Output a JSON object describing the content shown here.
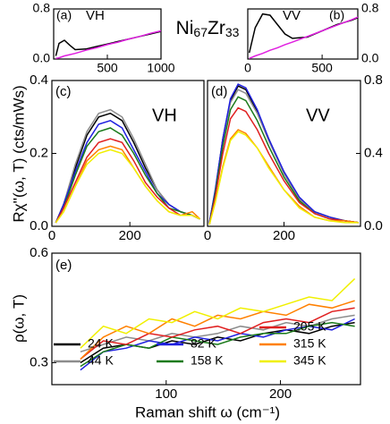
{
  "figure": {
    "title": [
      "Ni",
      "67",
      "Zr",
      "33"
    ],
    "y_label": "Rχ''(ω, T) (cts/mWs)",
    "x_label": "Raman shift ω (cm⁻¹)",
    "rho_label": "ρ(ω, T)"
  },
  "chart_data": [
    {
      "type": "line",
      "annotations": [
        "(a)",
        "VH"
      ],
      "xlim": [
        0,
        1000
      ],
      "ylim": [
        0,
        0.8
      ],
      "xticks": [
        500,
        1000
      ],
      "yticks": [
        {
          "value": 0,
          "label": "0.0"
        },
        0.8
      ],
      "y_axis_side": "left",
      "x": [
        20,
        50,
        100,
        150,
        200,
        300,
        400,
        500,
        600,
        700,
        800,
        900,
        1000
      ],
      "series": [
        {
          "color": "#000000",
          "values": [
            0.05,
            0.25,
            0.3,
            0.22,
            0.15,
            0.16,
            0.2,
            0.24,
            0.28,
            0.32,
            0.36,
            0.4,
            0.44
          ]
        },
        {
          "color": "#e020e0",
          "values": [
            0.01,
            0.02,
            0.05,
            0.07,
            0.09,
            0.14,
            0.18,
            0.23,
            0.27,
            0.32,
            0.36,
            0.41,
            0.45
          ]
        }
      ]
    },
    {
      "type": "line",
      "annotations": [
        "VV",
        "(b)"
      ],
      "xlim": [
        0,
        740
      ],
      "ylim": [
        0,
        0.8
      ],
      "xticks": [
        0,
        500
      ],
      "yticks": [
        {
          "value": 0,
          "label": "0.0"
        },
        0.8
      ],
      "y_axis_side": "right",
      "x": [
        10,
        50,
        100,
        150,
        200,
        250,
        300,
        400,
        500,
        600,
        700,
        740
      ],
      "series": [
        {
          "color": "#000000",
          "values": [
            0.1,
            0.5,
            0.72,
            0.7,
            0.55,
            0.4,
            0.33,
            0.35,
            0.45,
            0.55,
            0.62,
            0.66
          ]
        },
        {
          "color": "#e020e0",
          "values": [
            0.01,
            0.05,
            0.09,
            0.14,
            0.18,
            0.23,
            0.27,
            0.36,
            0.45,
            0.54,
            0.63,
            0.67
          ]
        }
      ]
    },
    {
      "type": "line",
      "annotations": [
        "(c)",
        "VH"
      ],
      "xlim": [
        0,
        390
      ],
      "ylim": [
        0,
        0.4
      ],
      "xticks": [
        0,
        200
      ],
      "yticks": [
        {
          "value": 0,
          "label": "0.0"
        },
        0.2,
        0.4
      ],
      "y_axis_side": "left",
      "x": [
        10,
        30,
        60,
        90,
        120,
        150,
        180,
        210,
        240,
        270,
        300,
        330,
        360,
        380
      ],
      "series": [
        {
          "color": "#000000",
          "values": [
            0.01,
            0.06,
            0.16,
            0.25,
            0.3,
            0.31,
            0.29,
            0.23,
            0.16,
            0.1,
            0.06,
            0.04,
            0.03,
            0.02
          ]
        },
        {
          "color": "#8c8c8c",
          "values": [
            0.01,
            0.06,
            0.17,
            0.26,
            0.31,
            0.32,
            0.3,
            0.24,
            0.17,
            0.1,
            0.06,
            0.04,
            0.03,
            0.02
          ]
        },
        {
          "color": "#1f1fe0",
          "values": [
            0.01,
            0.06,
            0.15,
            0.23,
            0.28,
            0.29,
            0.27,
            0.21,
            0.15,
            0.09,
            0.06,
            0.04,
            0.03,
            0.02
          ]
        },
        {
          "color": "#1a7a1a",
          "values": [
            0.01,
            0.05,
            0.14,
            0.22,
            0.26,
            0.27,
            0.25,
            0.2,
            0.14,
            0.09,
            0.05,
            0.04,
            0.03,
            0.02
          ]
        },
        {
          "color": "#e02020",
          "values": [
            0.01,
            0.05,
            0.12,
            0.19,
            0.23,
            0.24,
            0.23,
            0.18,
            0.12,
            0.08,
            0.05,
            0.03,
            0.03,
            0.02
          ]
        },
        {
          "color": "#ff8000",
          "values": [
            0.01,
            0.04,
            0.11,
            0.18,
            0.21,
            0.22,
            0.21,
            0.16,
            0.11,
            0.07,
            0.04,
            0.03,
            0.04,
            0.02
          ]
        },
        {
          "color": "#f0f000",
          "values": [
            0.01,
            0.04,
            0.11,
            0.17,
            0.2,
            0.21,
            0.2,
            0.16,
            0.11,
            0.07,
            0.04,
            0.03,
            0.03,
            0.02
          ]
        }
      ]
    },
    {
      "type": "line",
      "annotations": [
        "(d)",
        "VV"
      ],
      "xlim": [
        0,
        400
      ],
      "ylim": [
        0,
        0.8
      ],
      "xticks": [
        0,
        200
      ],
      "yticks": [
        {
          "value": 0,
          "label": "0.0"
        },
        0.4,
        0.8
      ],
      "y_axis_side": "right",
      "x": [
        5,
        20,
        40,
        60,
        80,
        100,
        130,
        160,
        200,
        240,
        280,
        320,
        360,
        395
      ],
      "series": [
        {
          "color": "#000000",
          "values": [
            0.02,
            0.19,
            0.48,
            0.69,
            0.77,
            0.75,
            0.63,
            0.48,
            0.29,
            0.15,
            0.08,
            0.05,
            0.03,
            0.02
          ]
        },
        {
          "color": "#8c8c8c",
          "values": [
            0.02,
            0.19,
            0.47,
            0.68,
            0.75,
            0.73,
            0.62,
            0.47,
            0.29,
            0.15,
            0.08,
            0.05,
            0.03,
            0.02
          ]
        },
        {
          "color": "#1f1fe0",
          "values": [
            0.02,
            0.2,
            0.48,
            0.7,
            0.78,
            0.76,
            0.64,
            0.48,
            0.3,
            0.16,
            0.08,
            0.05,
            0.03,
            0.02
          ]
        },
        {
          "color": "#1a7a1a",
          "values": [
            0.01,
            0.18,
            0.44,
            0.64,
            0.71,
            0.69,
            0.58,
            0.44,
            0.27,
            0.14,
            0.07,
            0.04,
            0.03,
            0.02
          ]
        },
        {
          "color": "#e02020",
          "values": [
            0.01,
            0.16,
            0.4,
            0.59,
            0.65,
            0.63,
            0.53,
            0.4,
            0.25,
            0.13,
            0.07,
            0.04,
            0.03,
            0.02
          ]
        },
        {
          "color": "#ff8000",
          "values": [
            0.01,
            0.13,
            0.33,
            0.48,
            0.53,
            0.51,
            0.43,
            0.33,
            0.2,
            0.11,
            0.05,
            0.03,
            0.03,
            0.02
          ]
        },
        {
          "color": "#f0f000",
          "values": [
            0.01,
            0.13,
            0.32,
            0.47,
            0.52,
            0.5,
            0.43,
            0.32,
            0.2,
            0.1,
            0.05,
            0.03,
            0.02,
            0.02
          ]
        }
      ]
    },
    {
      "type": "line",
      "annotations": [
        "(e)"
      ],
      "xlim": [
        0,
        270
      ],
      "ylim": [
        0.24,
        0.6
      ],
      "xticks": [
        100,
        200
      ],
      "yticks": [
        0.3,
        0.6
      ],
      "y_axis_side": "left",
      "legend": "lower",
      "x": [
        25,
        45,
        65,
        85,
        105,
        125,
        145,
        165,
        185,
        205,
        225,
        245,
        265
      ],
      "series": [
        {
          "name": "24 K",
          "color": "#000000",
          "values": [
            0.3,
            0.34,
            0.35,
            0.34,
            0.36,
            0.35,
            0.37,
            0.36,
            0.38,
            0.39,
            0.38,
            0.4,
            0.41
          ]
        },
        {
          "name": "44 K",
          "color": "#8c8c8c",
          "values": [
            0.33,
            0.35,
            0.37,
            0.36,
            0.38,
            0.37,
            0.38,
            0.4,
            0.39,
            0.41,
            0.4,
            0.42,
            0.43
          ]
        },
        {
          "name": "82 K",
          "color": "#1f1fe0",
          "values": [
            0.28,
            0.33,
            0.34,
            0.36,
            0.35,
            0.37,
            0.36,
            0.38,
            0.37,
            0.39,
            0.4,
            0.39,
            0.42
          ]
        },
        {
          "name": "158 K",
          "color": "#1a7a1a",
          "values": [
            0.29,
            0.33,
            0.35,
            0.34,
            0.37,
            0.36,
            0.35,
            0.37,
            0.38,
            0.38,
            0.4,
            0.41,
            0.4
          ]
        },
        {
          "name": "205 K",
          "color": "#e02020",
          "values": [
            0.31,
            0.36,
            0.35,
            0.38,
            0.37,
            0.39,
            0.4,
            0.38,
            0.41,
            0.42,
            0.41,
            0.44,
            0.45
          ]
        },
        {
          "name": "315 K",
          "color": "#ff8000",
          "values": [
            0.31,
            0.37,
            0.4,
            0.38,
            0.42,
            0.4,
            0.43,
            0.42,
            0.44,
            0.43,
            0.46,
            0.45,
            0.47
          ]
        },
        {
          "name": "345 K",
          "color": "#f0f000",
          "values": [
            0.34,
            0.4,
            0.38,
            0.42,
            0.41,
            0.44,
            0.42,
            0.45,
            0.44,
            0.46,
            0.48,
            0.47,
            0.53
          ]
        }
      ]
    }
  ]
}
